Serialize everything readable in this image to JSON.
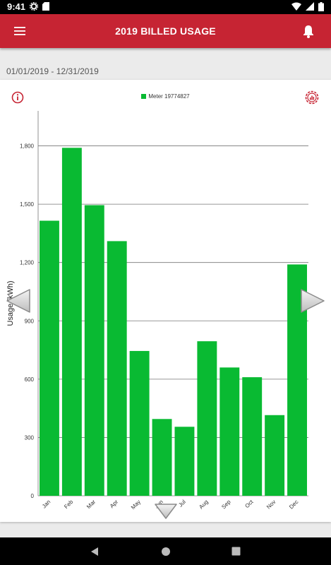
{
  "status": {
    "time": "9:41"
  },
  "header": {
    "title": "2019 BILLED USAGE"
  },
  "date_range": "01/01/2019 - 12/31/2019",
  "colors": {
    "brand": "#c62433",
    "bar": "#09ba32"
  },
  "chart_data": {
    "type": "bar",
    "categories": [
      "Jan",
      "Feb",
      "Mar",
      "Apr",
      "May",
      "Jun",
      "Jul",
      "Aug",
      "Sep",
      "Oct",
      "Nov",
      "Dec"
    ],
    "series": [
      {
        "name": "Meter 19774827",
        "values": [
          1415,
          1790,
          1495,
          1310,
          745,
          395,
          355,
          795,
          660,
          610,
          415,
          1190
        ]
      }
    ],
    "xlabel": "",
    "ylabel": "Usage (kWh)",
    "ylim": [
      0,
      1980
    ],
    "yticks": [
      0,
      300,
      600,
      900,
      1200,
      1500,
      1800
    ],
    "ytick_labels": [
      "0",
      "300",
      "600",
      "900",
      "1,200",
      "1,500",
      "1,800"
    ],
    "grid": true,
    "legend": "top-center"
  }
}
